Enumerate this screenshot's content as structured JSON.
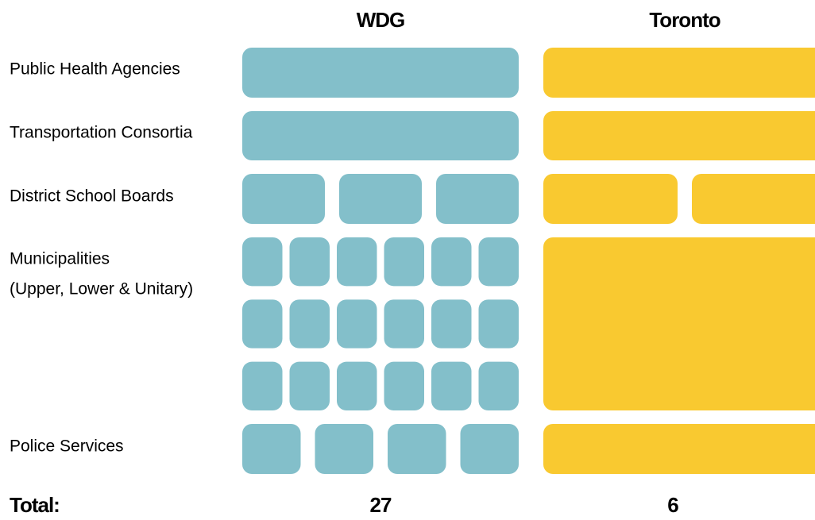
{
  "rows": [
    {
      "label": [
        "Public Health Agencies"
      ]
    },
    {
      "label": [
        "Transportation Consortia"
      ]
    },
    {
      "label": [
        "District School Boards"
      ]
    },
    {
      "label": [
        "Municipalities",
        "(Upper, Lower & Unitary)"
      ]
    },
    {
      "label": [
        "Police Services"
      ]
    }
  ],
  "columns": [
    {
      "name": "WDG",
      "color": "#83bfca",
      "counts": [
        1,
        1,
        3,
        18,
        4
      ],
      "total": 27
    },
    {
      "name": "Toronto",
      "color": "#f9c930",
      "counts": [
        1,
        1,
        2,
        1,
        1
      ],
      "total": 6
    }
  ],
  "total_label": "Total:"
}
